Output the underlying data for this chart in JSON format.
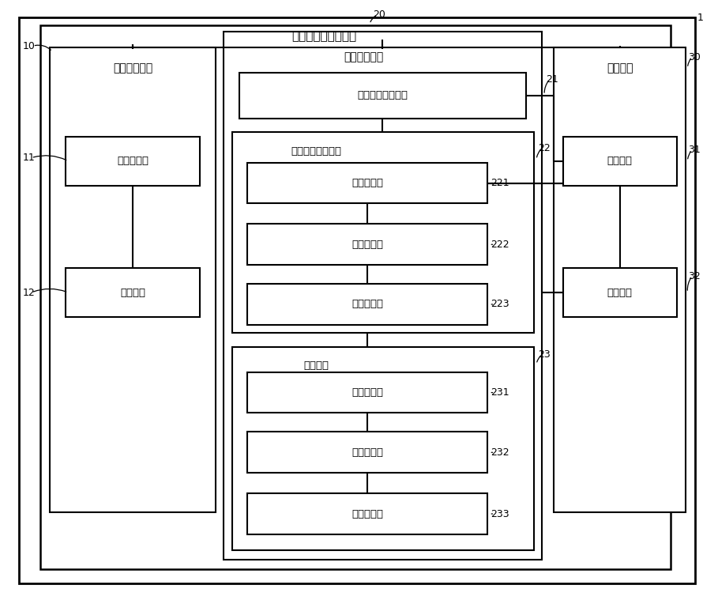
{
  "bg_color": "#ffffff",
  "box_color": "#000000",
  "text_color": "#000000",
  "fig_width": 9.09,
  "fig_height": 7.59,
  "labels": {
    "title": "电路板生产设计系统",
    "design_tool": "设计工具系统",
    "aux_design": "辅助设计系统",
    "hmi": "人机界面",
    "design_sub": "设计子系统",
    "monitor": "监控模块",
    "store_module": "设计规则存储模块",
    "gen_module": "设计规则生成模块",
    "select_sub": "选择子模块",
    "get_sub1": "获取子模块",
    "output_sub": "输出子模块",
    "judge_module": "判别模块",
    "get_sub2": "获取子模块",
    "judge_sub": "判断子模块",
    "response_sub": "响应子模块",
    "design_face": "设计界面",
    "aux_face": "辅助界面"
  },
  "numbers": {
    "n1": "1",
    "n10": "10",
    "n11": "11",
    "n12": "12",
    "n20": "20",
    "n21": "21",
    "n22": "22",
    "n221": "221",
    "n222": "222",
    "n223": "223",
    "n23": "23",
    "n231": "231",
    "n232": "232",
    "n233": "233",
    "n30": "30",
    "n31": "31",
    "n32": "32"
  }
}
